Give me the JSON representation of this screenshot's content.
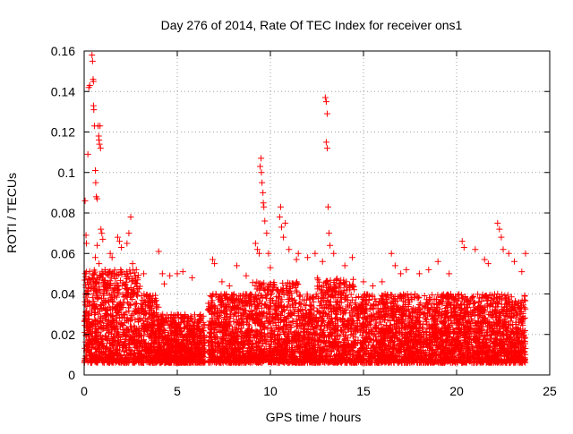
{
  "chart_data": {
    "type": "scatter",
    "title": "Day 276 of 2014, Rate Of TEC Index for receiver ons1",
    "xlabel": "GPS time / hours",
    "ylabel": "ROTI / TECUs",
    "xlim": [
      0,
      25
    ],
    "ylim": [
      0,
      0.16
    ],
    "x_ticks": [
      0,
      5,
      10,
      15,
      20,
      25
    ],
    "x_tick_labels": [
      "0",
      "5",
      "10",
      "15",
      "20",
      "25"
    ],
    "y_ticks": [
      0,
      0.02,
      0.04,
      0.06,
      0.08,
      0.1,
      0.12,
      0.14,
      0.16
    ],
    "y_tick_labels": [
      "0",
      "0.02",
      "0.04",
      "0.06",
      "0.08",
      "0.1",
      "0.12",
      "0.14",
      "0.16"
    ],
    "grid": true,
    "marker": "+",
    "color": "#ff0000",
    "data_gap_hours": [
      6.5,
      6.65
    ],
    "series": [
      {
        "name": "ROTI",
        "points": [
          [
            0.05,
            0.086
          ],
          [
            0.1,
            0.069
          ],
          [
            0.12,
            0.065
          ],
          [
            0.18,
            0.026
          ],
          [
            0.2,
            0.109
          ],
          [
            0.25,
            0.142
          ],
          [
            0.3,
            0.143
          ],
          [
            0.42,
            0.158
          ],
          [
            0.45,
            0.155
          ],
          [
            0.48,
            0.146
          ],
          [
            0.5,
            0.145
          ],
          [
            0.5,
            0.133
          ],
          [
            0.52,
            0.131
          ],
          [
            0.55,
            0.123
          ],
          [
            0.6,
            0.101
          ],
          [
            0.62,
            0.095
          ],
          [
            0.65,
            0.088
          ],
          [
            0.7,
            0.087
          ],
          [
            0.75,
            0.123
          ],
          [
            0.78,
            0.118
          ],
          [
            0.8,
            0.116
          ],
          [
            0.82,
            0.114
          ],
          [
            0.85,
            0.123
          ],
          [
            0.88,
            0.112
          ],
          [
            0.9,
            0.072
          ],
          [
            0.95,
            0.07
          ],
          [
            1.0,
            0.067
          ],
          [
            0.7,
            0.064
          ],
          [
            0.6,
            0.058
          ],
          [
            0.8,
            0.055
          ],
          [
            1.4,
            0.06
          ],
          [
            1.5,
            0.058
          ],
          [
            1.8,
            0.068
          ],
          [
            1.9,
            0.066
          ],
          [
            2.0,
            0.063
          ],
          [
            2.3,
            0.065
          ],
          [
            2.4,
            0.07
          ],
          [
            2.5,
            0.078
          ],
          [
            2.6,
            0.055
          ],
          [
            2.8,
            0.052
          ],
          [
            3.2,
            0.05
          ],
          [
            4.0,
            0.061
          ],
          [
            4.2,
            0.05
          ],
          [
            4.3,
            0.045
          ],
          [
            4.6,
            0.049
          ],
          [
            5.0,
            0.05
          ],
          [
            5.3,
            0.051
          ],
          [
            5.8,
            0.048
          ],
          [
            6.9,
            0.057
          ],
          [
            7.0,
            0.055
          ],
          [
            7.4,
            0.046
          ],
          [
            7.8,
            0.044
          ],
          [
            8.2,
            0.054
          ],
          [
            8.7,
            0.049
          ],
          [
            9.2,
            0.065
          ],
          [
            9.3,
            0.062
          ],
          [
            9.4,
            0.06
          ],
          [
            9.45,
            0.103
          ],
          [
            9.5,
            0.107
          ],
          [
            9.52,
            0.1
          ],
          [
            9.55,
            0.095
          ],
          [
            9.6,
            0.09
          ],
          [
            9.62,
            0.085
          ],
          [
            9.65,
            0.083
          ],
          [
            9.7,
            0.076
          ],
          [
            9.8,
            0.07
          ],
          [
            9.9,
            0.06
          ],
          [
            10.0,
            0.053
          ],
          [
            10.5,
            0.078
          ],
          [
            10.55,
            0.083
          ],
          [
            10.6,
            0.073
          ],
          [
            10.7,
            0.068
          ],
          [
            10.8,
            0.075
          ],
          [
            11.0,
            0.062
          ],
          [
            11.4,
            0.057
          ],
          [
            11.5,
            0.06
          ],
          [
            12.0,
            0.058
          ],
          [
            12.4,
            0.06
          ],
          [
            12.8,
            0.056
          ],
          [
            12.95,
            0.137
          ],
          [
            13.0,
            0.135
          ],
          [
            13.05,
            0.129
          ],
          [
            13.0,
            0.115
          ],
          [
            13.05,
            0.112
          ],
          [
            13.1,
            0.083
          ],
          [
            13.15,
            0.07
          ],
          [
            13.2,
            0.064
          ],
          [
            13.4,
            0.06
          ],
          [
            14.0,
            0.054
          ],
          [
            14.4,
            0.058
          ],
          [
            15.0,
            0.046
          ],
          [
            15.5,
            0.044
          ],
          [
            16.0,
            0.046
          ],
          [
            16.5,
            0.06
          ],
          [
            16.7,
            0.054
          ],
          [
            17.0,
            0.05
          ],
          [
            17.3,
            0.052
          ],
          [
            18.0,
            0.05
          ],
          [
            18.5,
            0.052
          ],
          [
            19.0,
            0.056
          ],
          [
            19.6,
            0.05
          ],
          [
            20.3,
            0.066
          ],
          [
            20.4,
            0.063
          ],
          [
            21.0,
            0.062
          ],
          [
            21.5,
            0.057
          ],
          [
            21.7,
            0.055
          ],
          [
            22.2,
            0.075
          ],
          [
            22.3,
            0.072
          ],
          [
            22.4,
            0.068
          ],
          [
            22.5,
            0.062
          ],
          [
            22.8,
            0.06
          ],
          [
            23.1,
            0.056
          ],
          [
            23.5,
            0.051
          ],
          [
            23.7,
            0.06
          ]
        ]
      }
    ]
  }
}
